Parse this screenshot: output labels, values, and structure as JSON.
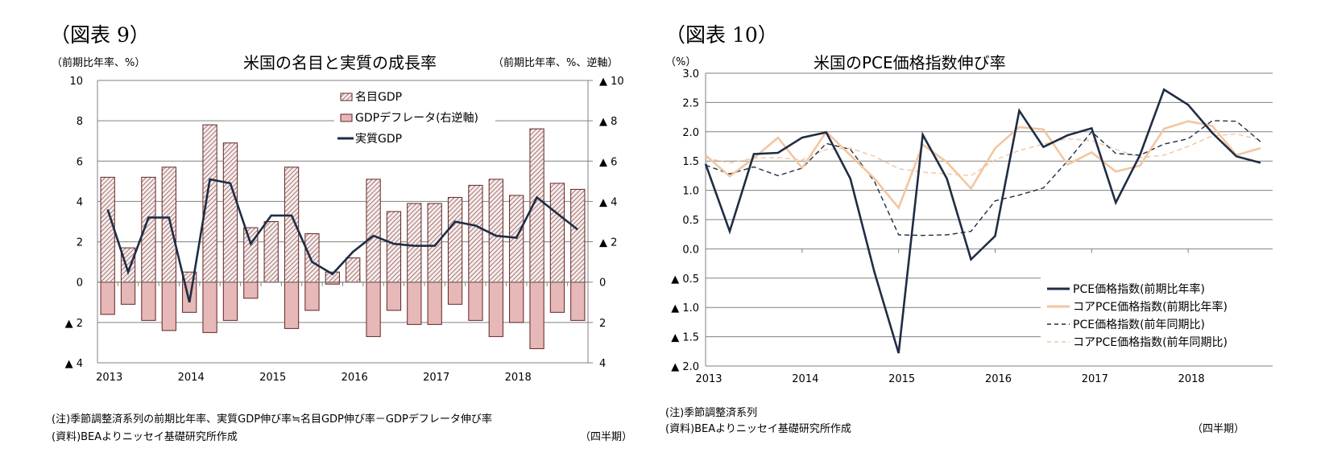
{
  "chart_data": [
    {
      "figure_label": "（図表 9）",
      "type": "bar",
      "title": "米国の名目と実質の成長率",
      "left_unit": "（前期比年率、%）",
      "right_unit": "（前期比年率、%、逆軸）",
      "period_label": "（四半期）",
      "note": "(注)季節調整済系列の前期比年率、実質GDP伸び率≒名目GDP伸び率－GDPデフレータ伸び率",
      "source": "(資料)BEAよりニッセイ基礎研究所作成",
      "x_tick_labels": [
        "2013",
        "2014",
        "2015",
        "2016",
        "2017",
        "2018"
      ],
      "x_start_year": 2013,
      "quarters_per_year": 4,
      "ylim": [
        -4,
        10
      ],
      "y_left_ticks": [
        {
          "value": 10,
          "label": "10"
        },
        {
          "value": 8,
          "label": "8"
        },
        {
          "value": 6,
          "label": "6"
        },
        {
          "value": 4,
          "label": "4"
        },
        {
          "value": 2,
          "label": "2"
        },
        {
          "value": 0,
          "label": "0"
        },
        {
          "value": -2,
          "label": "▲ 2"
        },
        {
          "value": -4,
          "label": "▲ 4"
        }
      ],
      "y_right_ticks": [
        {
          "value": 10,
          "label": "▲ 10"
        },
        {
          "value": 8,
          "label": "▲ 8"
        },
        {
          "value": 6,
          "label": "▲ 6"
        },
        {
          "value": 4,
          "label": "▲ 4"
        },
        {
          "value": 2,
          "label": "▲ 2"
        },
        {
          "value": 0,
          "label": "0"
        },
        {
          "value": -2,
          "label": "2"
        },
        {
          "value": -4,
          "label": "4"
        }
      ],
      "grid": true,
      "legend_position": "top-center",
      "series": [
        {
          "name": "名目GDP",
          "kind": "bar-hatched",
          "axis": "left",
          "values": [
            5.2,
            1.7,
            5.2,
            5.7,
            0.5,
            7.8,
            6.9,
            2.7,
            3.0,
            5.7,
            2.4,
            0.5,
            1.2,
            5.1,
            3.5,
            3.9,
            3.9,
            4.2,
            4.8,
            5.1,
            4.3,
            7.6,
            4.9,
            4.6
          ]
        },
        {
          "name": "GDPデフレータ(右逆軸)",
          "kind": "bar",
          "axis": "right-reversed",
          "values": [
            1.6,
            1.1,
            1.9,
            2.4,
            1.5,
            2.5,
            1.9,
            0.8,
            -0.3,
            2.3,
            1.4,
            0.1,
            -0.3,
            2.7,
            1.4,
            2.1,
            2.1,
            1.1,
            1.9,
            2.7,
            2.0,
            3.3,
            1.5,
            1.9
          ]
        },
        {
          "name": "実質GDP",
          "kind": "line",
          "axis": "left",
          "values": [
            3.6,
            0.5,
            3.2,
            3.2,
            -1.0,
            5.1,
            4.9,
            1.9,
            3.3,
            3.3,
            1.0,
            0.4,
            1.5,
            2.3,
            1.9,
            1.8,
            1.8,
            3.0,
            2.8,
            2.3,
            2.2,
            4.2,
            3.4,
            2.6
          ]
        }
      ],
      "colors": {
        "bar_fill": "#e6b8b7",
        "bar_stroke": "#632523",
        "hatch": "#8c5a58",
        "line": "#1f2d44",
        "grid": "#808080"
      }
    },
    {
      "figure_label": "（図表 10）",
      "type": "line",
      "title": "米国のPCE価格指数伸び率",
      "left_unit": "（%）",
      "period_label": "（四半期）",
      "note": "(注)季節調整済系列",
      "source": "(資料)BEAよりニッセイ基礎研究所作成",
      "x_tick_labels": [
        "2013",
        "2014",
        "2015",
        "2016",
        "2017",
        "2018"
      ],
      "x_start_year": 2013,
      "quarters_per_year": 4,
      "ylim": [
        -2.0,
        3.0
      ],
      "y_ticks": [
        {
          "value": 3.0,
          "label": "3.0"
        },
        {
          "value": 2.5,
          "label": "2.5"
        },
        {
          "value": 2.0,
          "label": "2.0"
        },
        {
          "value": 1.5,
          "label": "1.5"
        },
        {
          "value": 1.0,
          "label": "1.0"
        },
        {
          "value": 0.5,
          "label": "0.5"
        },
        {
          "value": 0.0,
          "label": "0.0"
        },
        {
          "value": -0.5,
          "label": "▲ 0.5"
        },
        {
          "value": -1.0,
          "label": "▲ 1.0"
        },
        {
          "value": -1.5,
          "label": "▲ 1.5"
        },
        {
          "value": -2.0,
          "label": "▲ 2.0"
        }
      ],
      "grid": true,
      "legend_position": "bottom-right",
      "series": [
        {
          "name": "PCE価格指数(前期比年率)",
          "style": "solid",
          "color": "#1f2d44",
          "values": [
            1.45,
            0.3,
            1.62,
            1.64,
            1.9,
            1.99,
            1.2,
            -0.4,
            -1.78,
            1.95,
            1.2,
            -0.18,
            0.22,
            2.36,
            1.74,
            1.94,
            2.06,
            0.79,
            1.6,
            2.72,
            2.46,
            1.98,
            1.58,
            1.47
          ]
        },
        {
          "name": "コアPCE価格指数(前期比年率)",
          "style": "solid",
          "color": "#f2c6a0",
          "values": [
            1.6,
            1.24,
            1.55,
            1.9,
            1.38,
            2.0,
            1.6,
            1.2,
            0.7,
            1.78,
            1.48,
            1.03,
            1.72,
            2.08,
            2.04,
            1.44,
            1.65,
            1.32,
            1.42,
            2.05,
            2.18,
            2.1,
            1.6,
            1.72
          ]
        },
        {
          "name": "PCE価格指数(前年同期比)",
          "style": "dashed",
          "color": "#1f2d44",
          "values": [
            1.43,
            1.28,
            1.4,
            1.25,
            1.38,
            1.8,
            1.7,
            1.15,
            0.24,
            0.23,
            0.24,
            0.3,
            0.82,
            0.92,
            1.04,
            1.5,
            2.0,
            1.63,
            1.6,
            1.79,
            1.88,
            2.19,
            2.18,
            1.83
          ]
        },
        {
          "name": "コアPCE価格指数(前年同期比)",
          "style": "dashed",
          "color": "#f2c6a0",
          "values": [
            1.55,
            1.47,
            1.55,
            1.56,
            1.52,
            1.7,
            1.72,
            1.58,
            1.37,
            1.31,
            1.28,
            1.25,
            1.52,
            1.68,
            1.79,
            1.88,
            1.85,
            1.7,
            1.56,
            1.6,
            1.75,
            1.93,
            1.96,
            1.86
          ]
        }
      ],
      "colors": {
        "grid": "#808080"
      }
    }
  ]
}
